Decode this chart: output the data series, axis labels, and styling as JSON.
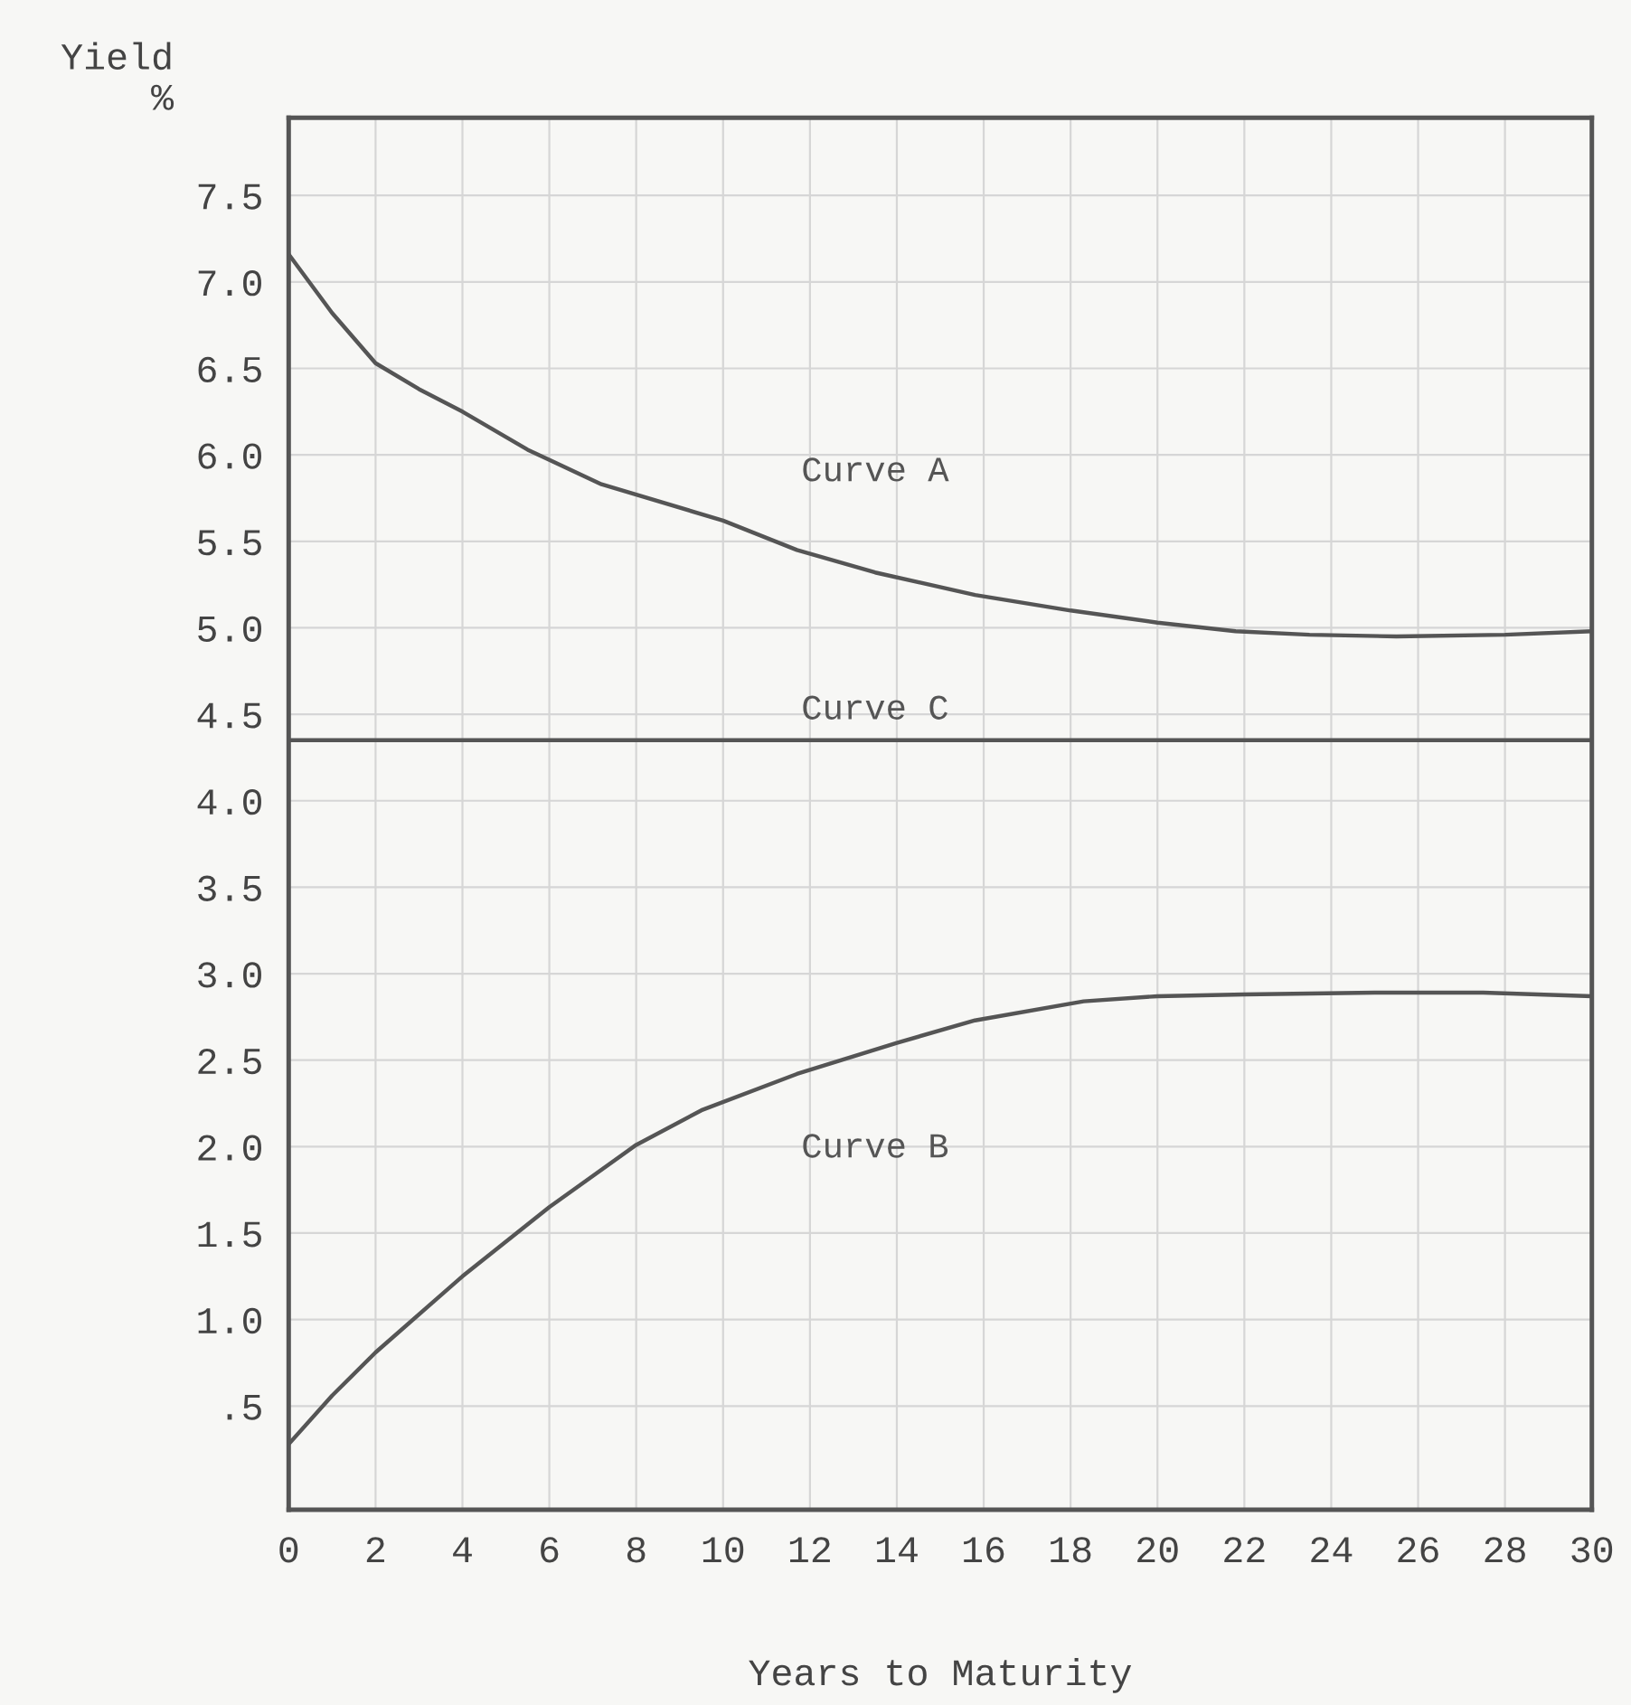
{
  "chart_data": {
    "type": "line",
    "xlabel": "Years to Maturity",
    "ylabel": "Yield\n%",
    "xlim": [
      0,
      30
    ],
    "xticks": [
      0,
      2,
      4,
      6,
      8,
      10,
      12,
      14,
      16,
      18,
      20,
      22,
      24,
      26,
      28,
      30
    ],
    "ylim": [
      -0.1,
      7.95
    ],
    "yticks": [
      {
        "value": 0.5,
        "label": ".5"
      },
      {
        "value": 1.0,
        "label": "1.0"
      },
      {
        "value": 1.5,
        "label": "1.5"
      },
      {
        "value": 2.0,
        "label": "2.0"
      },
      {
        "value": 2.5,
        "label": "2.5"
      },
      {
        "value": 3.0,
        "label": "3.0"
      },
      {
        "value": 3.5,
        "label": "3.5"
      },
      {
        "value": 4.0,
        "label": "4.0"
      },
      {
        "value": 4.5,
        "label": "4.5"
      },
      {
        "value": 5.0,
        "label": "5.0"
      },
      {
        "value": 5.5,
        "label": "5.5"
      },
      {
        "value": 6.0,
        "label": "6.0"
      },
      {
        "value": 6.5,
        "label": "6.5"
      },
      {
        "value": 7.0,
        "label": "7.0"
      },
      {
        "value": 7.5,
        "label": "7.5"
      }
    ],
    "grid": true,
    "marker": "none",
    "line_style": "solid",
    "series": [
      {
        "name": "Curve A",
        "color": "#555555",
        "x": [
          0,
          1,
          2,
          3,
          4,
          5.5,
          7.2,
          10,
          11.7,
          13.5,
          15.8,
          18,
          20,
          21.8,
          23.5,
          25.5,
          28,
          30
        ],
        "values": [
          7.16,
          6.82,
          6.53,
          6.38,
          6.25,
          6.03,
          5.83,
          5.62,
          5.45,
          5.32,
          5.19,
          5.1,
          5.03,
          4.98,
          4.96,
          4.95,
          4.96,
          4.98
        ]
      },
      {
        "name": "Curve C",
        "color": "#555555",
        "x": [
          0,
          30
        ],
        "values": [
          4.35,
          4.35
        ]
      },
      {
        "name": "Curve B",
        "color": "#555555",
        "x": [
          0,
          1,
          2,
          4,
          6,
          8,
          9.5,
          11.7,
          14,
          15.8,
          18.3,
          20,
          22,
          25,
          27.5,
          30
        ],
        "values": [
          0.28,
          0.56,
          0.81,
          1.25,
          1.65,
          2.01,
          2.21,
          2.42,
          2.6,
          2.73,
          2.84,
          2.87,
          2.88,
          2.89,
          2.89,
          2.87
        ]
      }
    ]
  }
}
